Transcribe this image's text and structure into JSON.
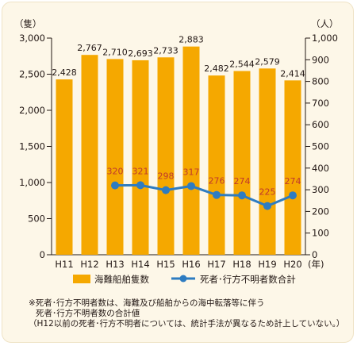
{
  "chart_data": {
    "type": "bar",
    "categories": [
      "H11",
      "H12",
      "H13",
      "H14",
      "H15",
      "H16",
      "H17",
      "H18",
      "H19",
      "H20"
    ],
    "series": [
      {
        "name": "海難船舶隻数",
        "type": "bar",
        "axis": "left",
        "color": "#f5a800",
        "values": [
          2428,
          2767,
          2710,
          2693,
          2733,
          2883,
          2482,
          2544,
          2579,
          2414
        ],
        "labels": [
          "2,428",
          "2,767",
          "2,710",
          "2,693",
          "2,733",
          "2,883",
          "2,482",
          "2,544",
          "2,579",
          "2,414"
        ]
      },
      {
        "name": "死者･行方不明者数合計",
        "type": "line",
        "axis": "right",
        "color": "#2e7cc1",
        "values": [
          null,
          null,
          320,
          321,
          298,
          317,
          276,
          274,
          225,
          274
        ],
        "labels": [
          "",
          "",
          "320",
          "321",
          "298",
          "317",
          "276",
          "274",
          "225",
          "274"
        ]
      }
    ],
    "left_axis": {
      "unit": "（隻）",
      "ylim": [
        0,
        3000
      ],
      "ticks": [
        0,
        500,
        1000,
        1500,
        2000,
        2500,
        3000
      ],
      "tick_labels": [
        "0",
        "500",
        "1,000",
        "1,500",
        "2,000",
        "2,500",
        "3,000"
      ]
    },
    "right_axis": {
      "unit": "（人）",
      "ylim": [
        0,
        1000
      ],
      "ticks": [
        0,
        100,
        200,
        300,
        400,
        500,
        600,
        700,
        800,
        900,
        1000
      ],
      "tick_labels": [
        "0",
        "100",
        "200",
        "300",
        "400",
        "500",
        "600",
        "700",
        "800",
        "900",
        "1,000"
      ]
    },
    "x_unit": "(年)",
    "grid": false,
    "legend_position": "bottom"
  },
  "notes": [
    "※死者･行方不明者数は、海難及び船舶からの海中転落等に伴う",
    "死者･行方不明者数の合計値",
    "（H12以前の死者･行方不明者については、統計手法が異なるため計上していない。）"
  ],
  "colors": {
    "background": "#fdf7e8",
    "bar": "#f5a800",
    "line": "#2e7cc1",
    "text": "#231815"
  }
}
